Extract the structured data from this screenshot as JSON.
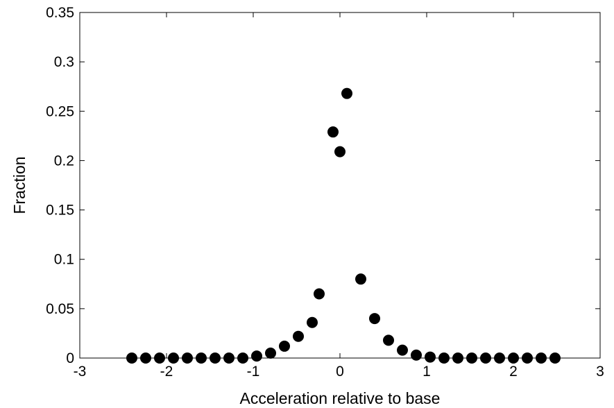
{
  "chart_data": {
    "type": "scatter",
    "title": "",
    "xlabel": "Acceleration relative to base",
    "ylabel": "Fraction",
    "xlim": [
      -3,
      3
    ],
    "ylim": [
      0,
      0.35
    ],
    "xticks": [
      -3,
      -2,
      -1,
      0,
      1,
      2,
      3
    ],
    "yticks": [
      0,
      0.05,
      0.1,
      0.15,
      0.2,
      0.25,
      0.3,
      0.35
    ],
    "xtick_labels": [
      "-3",
      "-2",
      "-1",
      "0",
      "1",
      "2",
      "3"
    ],
    "ytick_labels": [
      "0",
      "0.05",
      "0.1",
      "0.15",
      "0.2",
      "0.25",
      "0.3",
      "0.35"
    ],
    "grid": false,
    "marker_color": "#000000",
    "series": [
      {
        "x": [
          -2.4,
          -2.24,
          -2.08,
          -1.92,
          -1.76,
          -1.6,
          -1.44,
          -1.28,
          -1.12,
          -0.96,
          -0.8,
          -0.64,
          -0.48,
          -0.32,
          -0.24,
          -0.08,
          0.0,
          0.08,
          0.24,
          0.4,
          0.56,
          0.72,
          0.88,
          1.04,
          1.2,
          1.36,
          1.52,
          1.68,
          1.84,
          2.0,
          2.16,
          2.32,
          2.48
        ],
        "y": [
          0,
          0,
          0,
          0,
          0,
          0,
          0,
          0,
          0,
          0.002,
          0.005,
          0.012,
          0.022,
          0.036,
          0.065,
          0.229,
          0.209,
          0.268,
          0.08,
          0.04,
          0.018,
          0.008,
          0.003,
          0.001,
          0,
          0,
          0,
          0,
          0,
          0,
          0,
          0,
          0
        ]
      }
    ]
  }
}
